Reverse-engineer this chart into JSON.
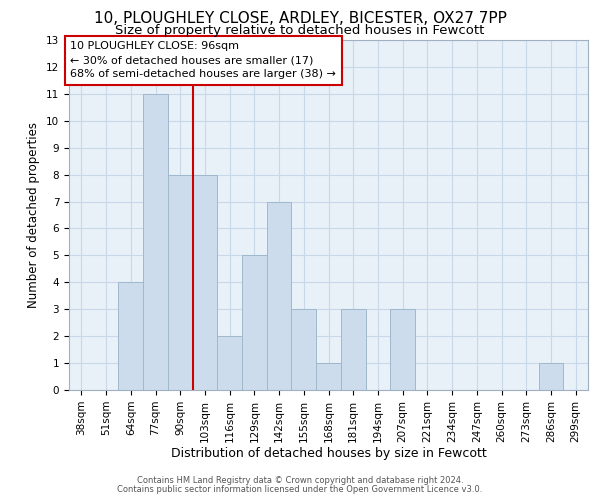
{
  "title1": "10, PLOUGHLEY CLOSE, ARDLEY, BICESTER, OX27 7PP",
  "title2": "Size of property relative to detached houses in Fewcott",
  "xlabel": "Distribution of detached houses by size in Fewcott",
  "ylabel": "Number of detached properties",
  "categories": [
    "38sqm",
    "51sqm",
    "64sqm",
    "77sqm",
    "90sqm",
    "103sqm",
    "116sqm",
    "129sqm",
    "142sqm",
    "155sqm",
    "168sqm",
    "181sqm",
    "194sqm",
    "207sqm",
    "221sqm",
    "234sqm",
    "247sqm",
    "260sqm",
    "273sqm",
    "286sqm",
    "299sqm"
  ],
  "values": [
    0,
    0,
    4,
    11,
    8,
    8,
    2,
    5,
    7,
    3,
    1,
    3,
    0,
    3,
    0,
    0,
    0,
    0,
    0,
    1,
    0
  ],
  "bar_color": "#ccdcec",
  "bar_edge_color": "#a0b8cc",
  "vline_x": 4.5,
  "vline_color": "#cc0000",
  "annotation_line1": "10 PLOUGHLEY CLOSE: 96sqm",
  "annotation_line2": "← 30% of detached houses are smaller (17)",
  "annotation_line3": "68% of semi-detached houses are larger (38) →",
  "annotation_box_edge_color": "#cc0000",
  "grid_color": "#c8d8e8",
  "background_color": "#e8f0f8",
  "plot_bg_color": "#ffffff",
  "ylim": [
    0,
    13
  ],
  "yticks": [
    0,
    1,
    2,
    3,
    4,
    5,
    6,
    7,
    8,
    9,
    10,
    11,
    12,
    13
  ],
  "footer1": "Contains HM Land Registry data © Crown copyright and database right 2024.",
  "footer2": "Contains public sector information licensed under the Open Government Licence v3.0.",
  "title1_fontsize": 11,
  "title2_fontsize": 9.5,
  "tick_fontsize": 7.5,
  "ylabel_fontsize": 8.5,
  "xlabel_fontsize": 9,
  "footer_fontsize": 6.0,
  "annot_fontsize": 8.0
}
